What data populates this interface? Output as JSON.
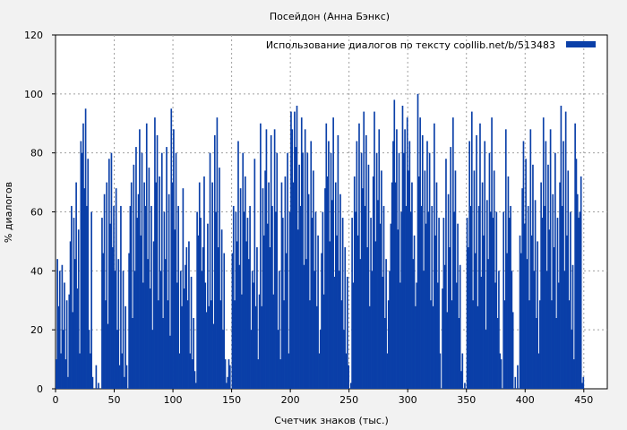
{
  "chart_data": {
    "type": "bar",
    "title": "Посейдон (Анна Бэнкс)",
    "xlabel": "Счетчик знаков (тыс.)",
    "ylabel": "% диалогов",
    "xlim": [
      0,
      470
    ],
    "ylim": [
      0,
      120
    ],
    "x_ticks": [
      0,
      50,
      100,
      150,
      200,
      250,
      300,
      350,
      400,
      450
    ],
    "y_ticks": [
      0,
      20,
      40,
      60,
      80,
      100,
      120
    ],
    "grid": true,
    "legend": {
      "position": "top-right"
    },
    "series": [
      {
        "name": "Использование диалогов по тексту  coollib.net/b/513483",
        "color": "#0a3fa8",
        "x_start": 0,
        "x_step": 1,
        "values": [
          10,
          44,
          28,
          40,
          12,
          42,
          20,
          36,
          10,
          30,
          4,
          32,
          50,
          62,
          26,
          58,
          44,
          70,
          34,
          54,
          12,
          84,
          80,
          90,
          68,
          95,
          62,
          78,
          20,
          12,
          60,
          4,
          0,
          0,
          8,
          0,
          2,
          0,
          0,
          58,
          46,
          66,
          30,
          70,
          22,
          78,
          56,
          80,
          48,
          62,
          40,
          68,
          20,
          44,
          8,
          62,
          12,
          40,
          4,
          28,
          8,
          0,
          46,
          62,
          70,
          24,
          76,
          40,
          82,
          58,
          66,
          88,
          52,
          80,
          36,
          70,
          62,
          90,
          44,
          75,
          34,
          62,
          20,
          50,
          92,
          70,
          86,
          30,
          72,
          40,
          80,
          24,
          60,
          44,
          82,
          30,
          66,
          18,
          95,
          70,
          88,
          54,
          80,
          36,
          62,
          12,
          40,
          28,
          68,
          34,
          42,
          48,
          30,
          50,
          12,
          38,
          10,
          24,
          6,
          2,
          60,
          52,
          70,
          58,
          40,
          48,
          72,
          36,
          26,
          56,
          28,
          80,
          30,
          70,
          22,
          86,
          60,
          92,
          48,
          75,
          30,
          54,
          20,
          46,
          10,
          2,
          4,
          10,
          8,
          0,
          46,
          62,
          30,
          60,
          50,
          84,
          42,
          68,
          32,
          80,
          60,
          72,
          50,
          58,
          44,
          62,
          20,
          40,
          36,
          78,
          28,
          48,
          10,
          32,
          90,
          28,
          68,
          52,
          74,
          88,
          56,
          70,
          48,
          86,
          62,
          32,
          88,
          60,
          80,
          20,
          40,
          10,
          70,
          58,
          30,
          72,
          46,
          80,
          12,
          60,
          94,
          88,
          70,
          94,
          82,
          96,
          54,
          76,
          62,
          92,
          80,
          42,
          88,
          44,
          80,
          66,
          30,
          84,
          58,
          74,
          40,
          60,
          28,
          52,
          12,
          20,
          46,
          60,
          32,
          68,
          90,
          72,
          84,
          50,
          80,
          64,
          92,
          38,
          70,
          52,
          86,
          40,
          66,
          30,
          58,
          20,
          48,
          12,
          38,
          8,
          0,
          2,
          58,
          36,
          72,
          60,
          84,
          52,
          90,
          44,
          80,
          68,
          94,
          62,
          86,
          48,
          76,
          28,
          58,
          40,
          72,
          94,
          50,
          80,
          64,
          88,
          56,
          74,
          38,
          62,
          24,
          44,
          12,
          30,
          40,
          56,
          70,
          84,
          98,
          70,
          88,
          54,
          80,
          36,
          60,
          96,
          80,
          88,
          62,
          92,
          74,
          84,
          60,
          70,
          44,
          52,
          28,
          36,
          100,
          72,
          92,
          62,
          86,
          40,
          74,
          56,
          84,
          60,
          80,
          30,
          62,
          28,
          90,
          52,
          70,
          36,
          58,
          12,
          0,
          34,
          58,
          42,
          78,
          26,
          66,
          48,
          82,
          30,
          92,
          60,
          74,
          36,
          56,
          24,
          42,
          6,
          12,
          0,
          2,
          0,
          58,
          48,
          84,
          62,
          94,
          30,
          74,
          46,
          86,
          28,
          62,
          90,
          38,
          70,
          52,
          84,
          20,
          64,
          44,
          80,
          60,
          92,
          58,
          74,
          36,
          60,
          24,
          40,
          12,
          10,
          0,
          60,
          30,
          88,
          46,
          72,
          58,
          62,
          40,
          26,
          0,
          4,
          0,
          8,
          0,
          52,
          46,
          68,
          84,
          56,
          78,
          44,
          62,
          30,
          88,
          52,
          76,
          40,
          64,
          24,
          50,
          12,
          30,
          70,
          58,
          92,
          62,
          84,
          40,
          76,
          54,
          88,
          30,
          66,
          48,
          80,
          24,
          58,
          36,
          70,
          96,
          62,
          84,
          40,
          94,
          52,
          74,
          30,
          60,
          20,
          42,
          10,
          90,
          78,
          66,
          58,
          60,
          72,
          2,
          4
        ]
      }
    ]
  }
}
